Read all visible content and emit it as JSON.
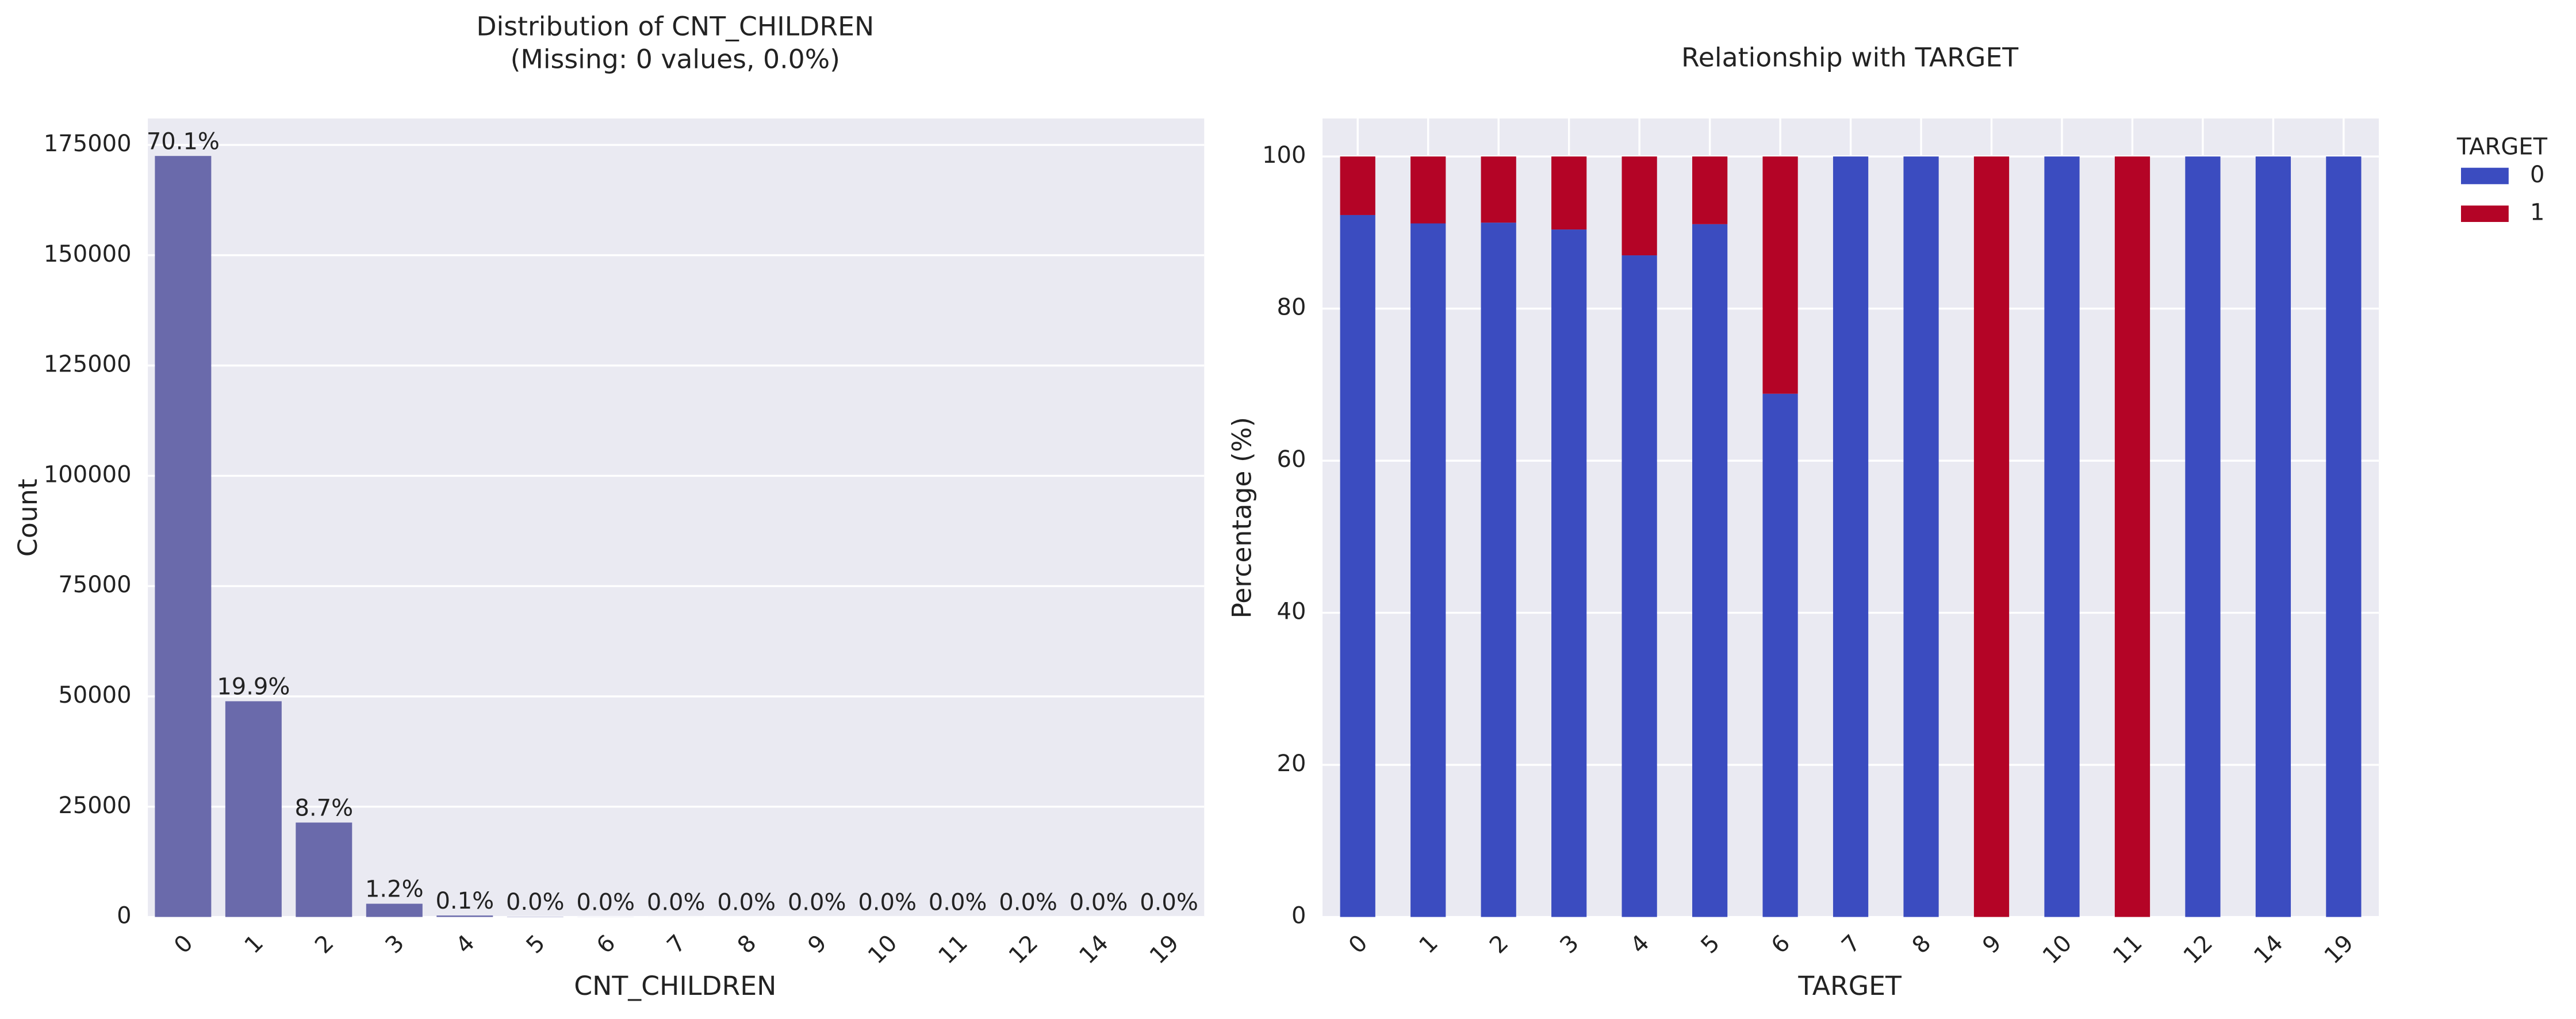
{
  "chart_data": [
    {
      "type": "bar",
      "title": "Distribution of CNT_CHILDREN",
      "subtitle": "(Missing: 0 values, 0.0%)",
      "x_label": "CNT_CHILDREN",
      "y_label": "Count",
      "categories": [
        "0",
        "1",
        "2",
        "3",
        "4",
        "5",
        "6",
        "7",
        "8",
        "9",
        "10",
        "11",
        "12",
        "14",
        "19"
      ],
      "values": [
        172500,
        48900,
        21400,
        3000,
        330,
        60,
        15,
        5,
        2,
        2,
        2,
        1,
        2,
        3,
        2
      ],
      "bar_labels": [
        "70.1%",
        "19.9%",
        "8.7%",
        "1.2%",
        "0.1%",
        "0.0%",
        "0.0%",
        "0.0%",
        "0.0%",
        "0.0%",
        "0.0%",
        "0.0%",
        "0.0%",
        "0.0%",
        "0.0%"
      ],
      "color": "#6a6aab",
      "ylim": [
        0,
        181000
      ],
      "yticks": [
        0,
        25000,
        50000,
        75000,
        100000,
        125000,
        150000,
        175000
      ],
      "grid": true
    },
    {
      "type": "stacked_bar",
      "title": "Relationship with TARGET",
      "x_label": "TARGET",
      "y_label": "Percentage (%)",
      "categories": [
        "0",
        "1",
        "2",
        "3",
        "4",
        "5",
        "6",
        "7",
        "8",
        "9",
        "10",
        "11",
        "12",
        "14",
        "19"
      ],
      "series": [
        {
          "name": "0",
          "color": "#3b4cc0",
          "values": [
            92.3,
            91.2,
            91.3,
            90.4,
            87.0,
            91.1,
            68.8,
            100,
            100,
            0,
            100,
            0,
            100,
            100,
            100
          ]
        },
        {
          "name": "1",
          "color": "#b40426",
          "values": [
            7.7,
            8.8,
            8.7,
            9.6,
            13.0,
            8.9,
            31.2,
            0,
            0,
            100,
            0,
            100,
            0,
            0,
            0
          ]
        }
      ],
      "legend_title": "TARGET",
      "legend": "outside-right",
      "ylim": [
        0,
        105
      ],
      "yticks": [
        0,
        20,
        40,
        60,
        80,
        100
      ],
      "grid": true
    }
  ]
}
